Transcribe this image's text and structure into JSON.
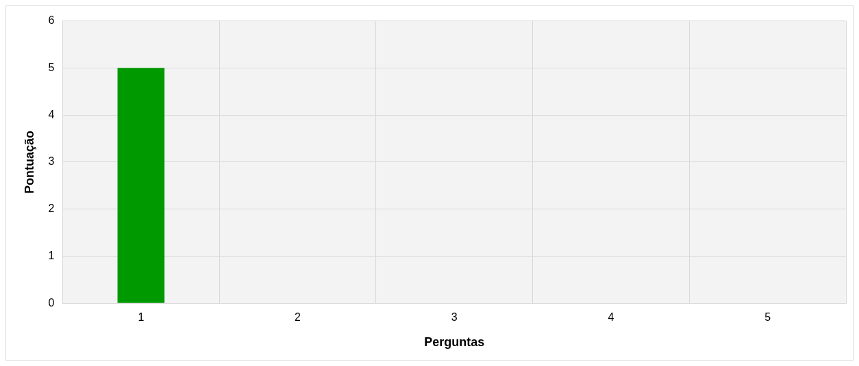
{
  "chart_data": {
    "type": "bar",
    "xlabel": "Perguntas",
    "ylabel": "Pontuação",
    "categories": [
      "1",
      "2",
      "3",
      "4",
      "5"
    ],
    "series": [
      {
        "color": "#009900",
        "values": [
          5,
          0,
          0,
          0,
          0
        ]
      }
    ],
    "ylim": [
      0,
      6
    ],
    "yticks": [
      0,
      1,
      2,
      3,
      4,
      5,
      6
    ],
    "grid": true,
    "legend": false
  }
}
